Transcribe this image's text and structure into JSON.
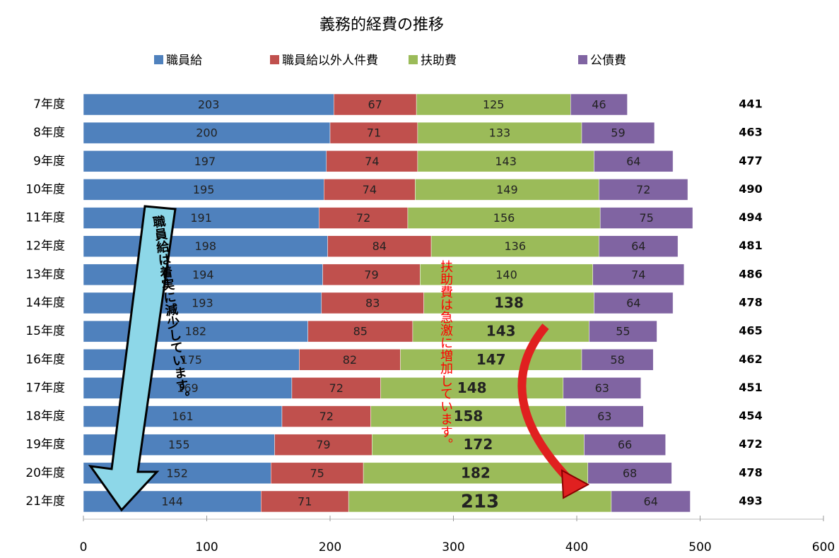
{
  "chart_data": {
    "type": "stacked-barh",
    "title": "義務的経費の推移",
    "categories": [
      "7年度",
      "8年度",
      "9年度",
      "10年度",
      "11年度",
      "12年度",
      "13年度",
      "14年度",
      "15年度",
      "16年度",
      "17年度",
      "18年度",
      "19年度",
      "20年度",
      "21年度"
    ],
    "series": [
      {
        "name": "職員給",
        "color": "#4f81bd",
        "values": [
          203,
          200,
          197,
          195,
          191,
          198,
          194,
          193,
          182,
          175,
          169,
          161,
          155,
          152,
          144
        ]
      },
      {
        "name": "職員給以外人件費",
        "color": "#c0504d",
        "values": [
          67,
          71,
          74,
          74,
          72,
          84,
          79,
          83,
          85,
          82,
          72,
          72,
          79,
          75,
          71
        ]
      },
      {
        "name": "扶助費",
        "color": "#9bbb59",
        "values": [
          125,
          133,
          143,
          149,
          156,
          136,
          140,
          138,
          143,
          147,
          148,
          158,
          172,
          182,
          213
        ]
      },
      {
        "name": "公債費",
        "color": "#8064a2",
        "values": [
          46,
          59,
          64,
          72,
          75,
          64,
          74,
          64,
          55,
          58,
          63,
          63,
          66,
          68,
          64
        ]
      }
    ],
    "totals": [
      441,
      463,
      477,
      490,
      494,
      481,
      486,
      478,
      465,
      462,
      451,
      454,
      472,
      478,
      493
    ],
    "xlim": [
      0,
      600
    ],
    "xticks": [
      0,
      100,
      200,
      300,
      400,
      500,
      600
    ],
    "annotations": [
      "職員給は着実に減少しています。",
      "扶助費は急激に増加しています。"
    ]
  }
}
